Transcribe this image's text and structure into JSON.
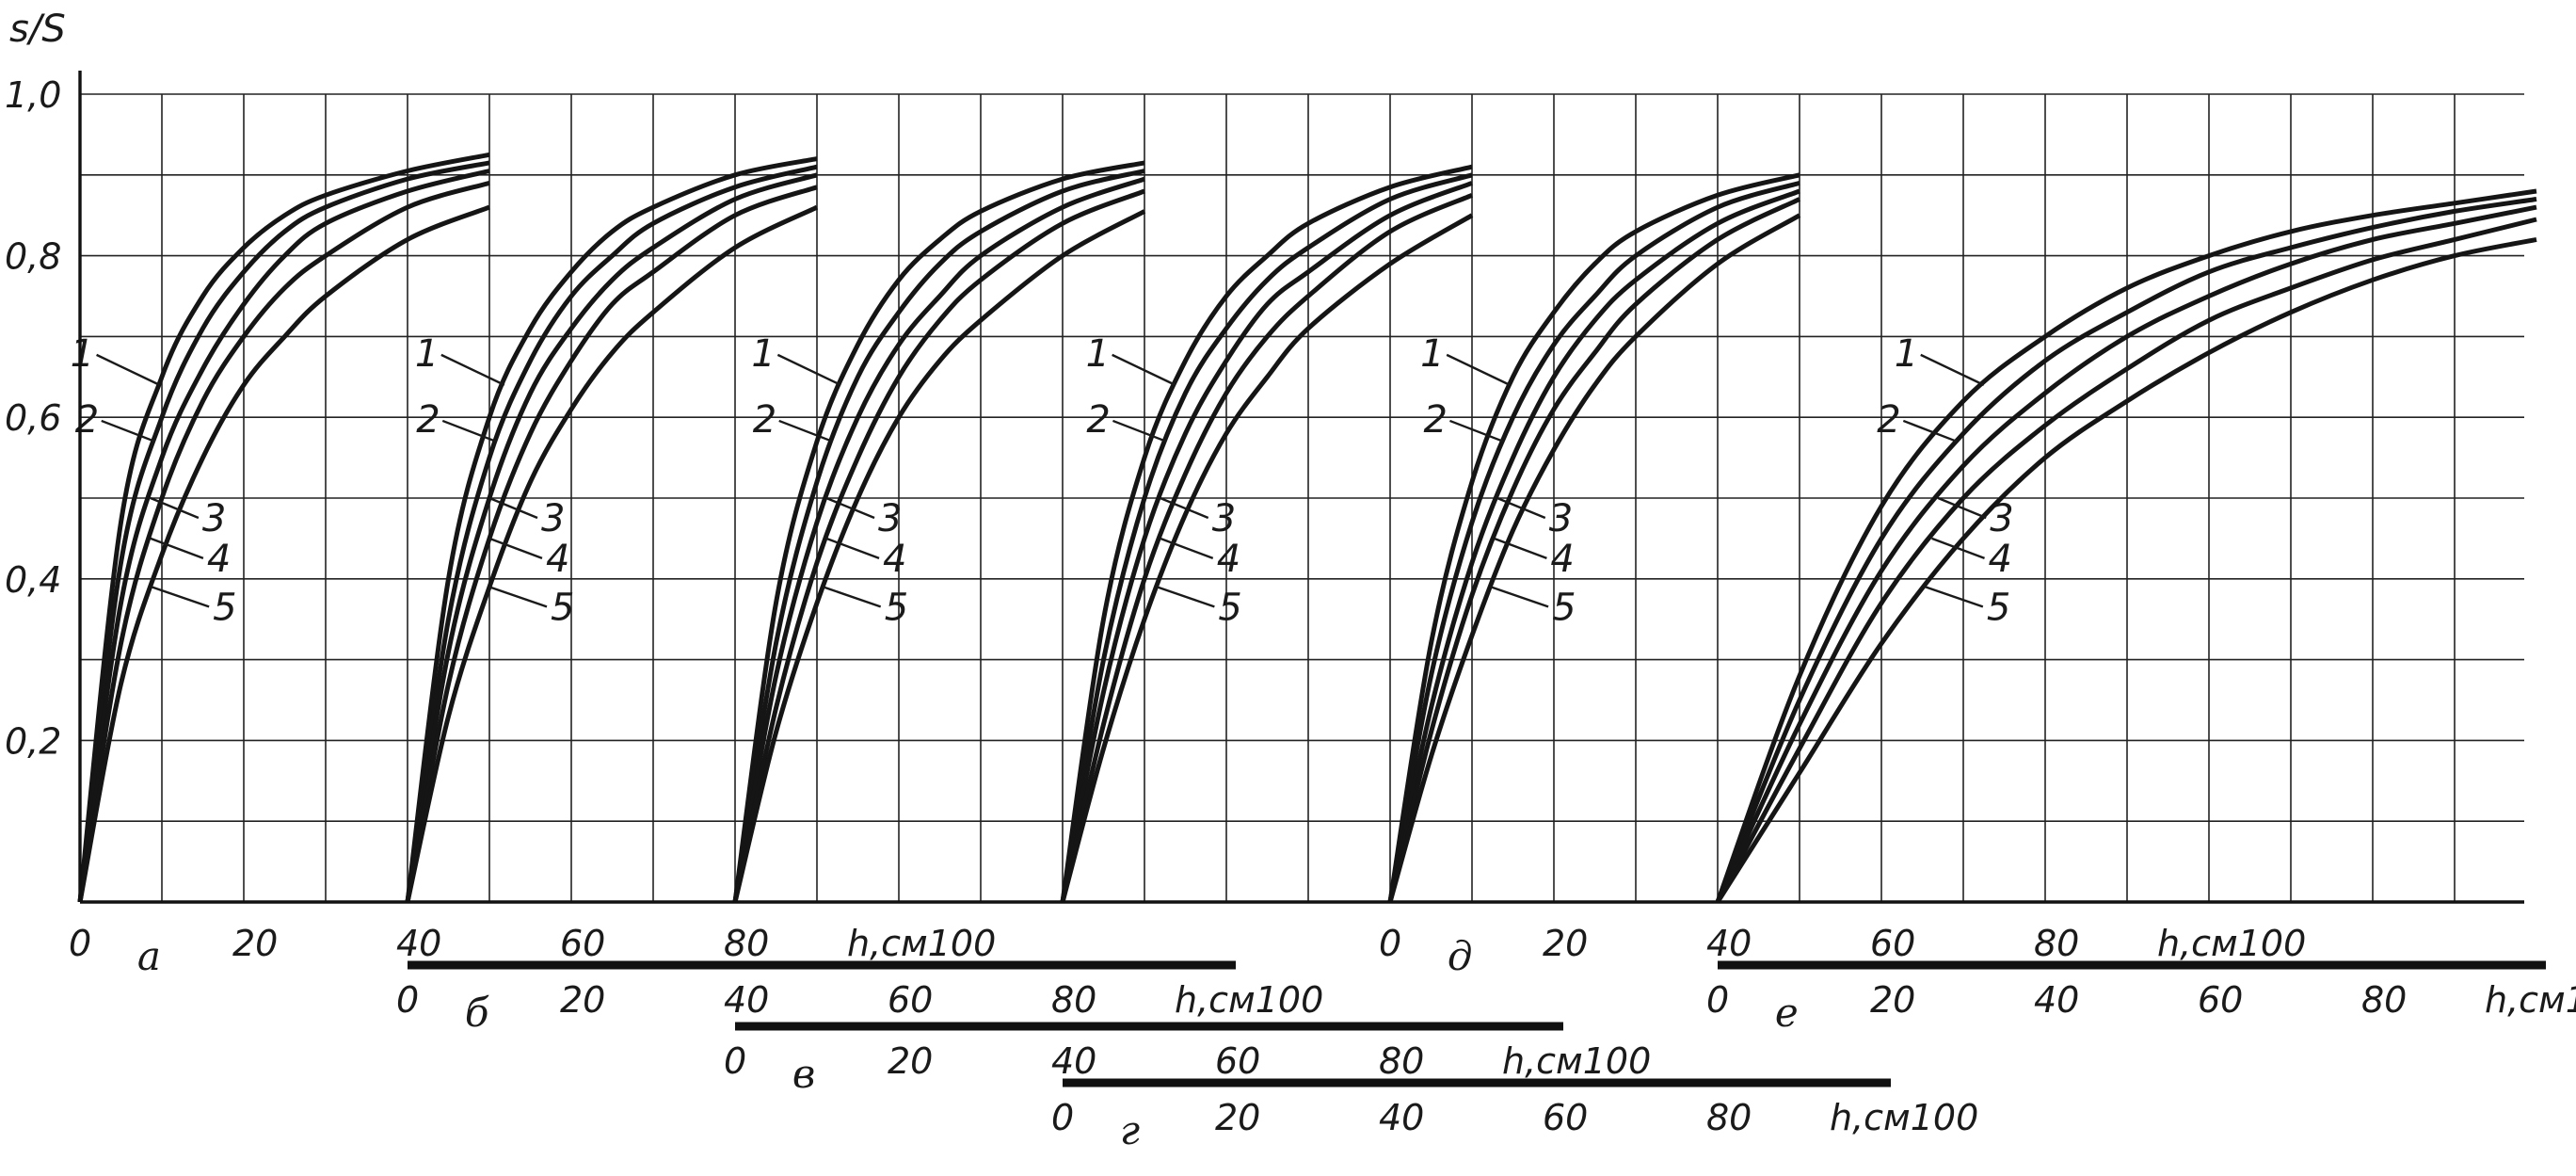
{
  "chart_data": {
    "type": "line",
    "title": "",
    "ylabel": "s/S",
    "ylim": [
      0,
      1.0
    ],
    "grid": true,
    "y_ticks": [
      "0,2",
      "0,4",
      "0,6",
      "0,8",
      "1,0"
    ],
    "x_ticks": [
      "0",
      "20",
      "40",
      "60",
      "80",
      "h,см100"
    ],
    "xlim": [
      0,
      100
    ],
    "panels": [
      {
        "letter": "а",
        "offset_cm": 0,
        "series": [
          {
            "name": "1",
            "x": [
              0,
              5,
              10,
              15,
              20,
              25,
              30,
              40,
              50
            ],
            "y": [
              0,
              0.47,
              0.65,
              0.75,
              0.81,
              0.85,
              0.875,
              0.905,
              0.925
            ]
          },
          {
            "name": "2",
            "x": [
              0,
              5,
              10,
              15,
              20,
              25,
              30,
              40,
              50
            ],
            "y": [
              0,
              0.42,
              0.6,
              0.71,
              0.78,
              0.83,
              0.86,
              0.895,
              0.915
            ]
          },
          {
            "name": "3",
            "x": [
              0,
              5,
              10,
              15,
              20,
              25,
              30,
              40,
              50
            ],
            "y": [
              0,
              0.37,
              0.55,
              0.66,
              0.74,
              0.8,
              0.84,
              0.88,
              0.905
            ]
          },
          {
            "name": "4",
            "x": [
              0,
              5,
              10,
              15,
              20,
              25,
              30,
              40,
              50
            ],
            "y": [
              0,
              0.32,
              0.5,
              0.62,
              0.7,
              0.76,
              0.8,
              0.86,
              0.89
            ]
          },
          {
            "name": "5",
            "x": [
              0,
              5,
              10,
              15,
              20,
              25,
              30,
              40,
              50
            ],
            "y": [
              0,
              0.27,
              0.43,
              0.55,
              0.64,
              0.7,
              0.75,
              0.82,
              0.86
            ]
          }
        ]
      },
      {
        "letter": "б",
        "offset_cm": 40,
        "series": [
          {
            "name": "1",
            "x": [
              0,
              5,
              10,
              15,
              20,
              25,
              30,
              40,
              50
            ],
            "y": [
              0,
              0.4,
              0.6,
              0.71,
              0.78,
              0.83,
              0.86,
              0.9,
              0.92
            ]
          },
          {
            "name": "2",
            "x": [
              0,
              5,
              10,
              15,
              20,
              25,
              30,
              40,
              50
            ],
            "y": [
              0,
              0.35,
              0.55,
              0.67,
              0.75,
              0.8,
              0.84,
              0.885,
              0.91
            ]
          },
          {
            "name": "3",
            "x": [
              0,
              5,
              10,
              15,
              20,
              25,
              30,
              40,
              50
            ],
            "y": [
              0,
              0.31,
              0.5,
              0.63,
              0.71,
              0.77,
              0.81,
              0.87,
              0.9
            ]
          },
          {
            "name": "4",
            "x": [
              0,
              5,
              10,
              15,
              20,
              25,
              30,
              40,
              50
            ],
            "y": [
              0,
              0.27,
              0.45,
              0.58,
              0.67,
              0.74,
              0.78,
              0.85,
              0.885
            ]
          },
          {
            "name": "5",
            "x": [
              0,
              5,
              10,
              15,
              20,
              25,
              30,
              40,
              50
            ],
            "y": [
              0,
              0.23,
              0.39,
              0.52,
              0.61,
              0.68,
              0.73,
              0.81,
              0.86
            ]
          }
        ]
      },
      {
        "letter": "в",
        "offset_cm": 80,
        "series": [
          {
            "name": "1",
            "x": [
              0,
              5,
              10,
              15,
              20,
              25,
              30,
              40,
              50
            ],
            "y": [
              0,
              0.37,
              0.57,
              0.69,
              0.77,
              0.82,
              0.855,
              0.895,
              0.915
            ]
          },
          {
            "name": "2",
            "x": [
              0,
              5,
              10,
              15,
              20,
              25,
              30,
              40,
              50
            ],
            "y": [
              0,
              0.32,
              0.52,
              0.65,
              0.73,
              0.79,
              0.83,
              0.88,
              0.905
            ]
          },
          {
            "name": "3",
            "x": [
              0,
              5,
              10,
              15,
              20,
              25,
              30,
              40,
              50
            ],
            "y": [
              0,
              0.28,
              0.47,
              0.6,
              0.69,
              0.75,
              0.8,
              0.86,
              0.895
            ]
          },
          {
            "name": "4",
            "x": [
              0,
              5,
              10,
              15,
              20,
              25,
              30,
              40,
              50
            ],
            "y": [
              0,
              0.24,
              0.42,
              0.55,
              0.65,
              0.72,
              0.77,
              0.84,
              0.88
            ]
          },
          {
            "name": "5",
            "x": [
              0,
              5,
              10,
              15,
              20,
              25,
              30,
              40,
              50
            ],
            "y": [
              0,
              0.21,
              0.37,
              0.5,
              0.6,
              0.67,
              0.72,
              0.8,
              0.855
            ]
          }
        ]
      },
      {
        "letter": "г",
        "offset_cm": 120,
        "series": [
          {
            "name": "1",
            "x": [
              0,
              5,
              10,
              15,
              20,
              25,
              30,
              40,
              50
            ],
            "y": [
              0,
              0.35,
              0.55,
              0.67,
              0.75,
              0.8,
              0.84,
              0.885,
              0.91
            ]
          },
          {
            "name": "2",
            "x": [
              0,
              5,
              10,
              15,
              20,
              25,
              30,
              40,
              50
            ],
            "y": [
              0,
              0.3,
              0.5,
              0.63,
              0.71,
              0.77,
              0.81,
              0.87,
              0.9
            ]
          },
          {
            "name": "3",
            "x": [
              0,
              5,
              10,
              15,
              20,
              25,
              30,
              40,
              50
            ],
            "y": [
              0,
              0.26,
              0.45,
              0.58,
              0.67,
              0.74,
              0.78,
              0.85,
              0.89
            ]
          },
          {
            "name": "4",
            "x": [
              0,
              5,
              10,
              15,
              20,
              25,
              30,
              40,
              50
            ],
            "y": [
              0,
              0.22,
              0.4,
              0.53,
              0.63,
              0.7,
              0.75,
              0.83,
              0.875
            ]
          },
          {
            "name": "5",
            "x": [
              0,
              5,
              10,
              15,
              20,
              25,
              30,
              40,
              50
            ],
            "y": [
              0,
              0.19,
              0.35,
              0.48,
              0.58,
              0.65,
              0.71,
              0.79,
              0.85
            ]
          }
        ]
      },
      {
        "letter": "д",
        "offset_cm": 160,
        "series": [
          {
            "name": "1",
            "x": [
              0,
              5,
              10,
              15,
              20,
              25,
              30,
              40,
              50
            ],
            "y": [
              0,
              0.32,
              0.52,
              0.65,
              0.73,
              0.79,
              0.83,
              0.875,
              0.9
            ]
          },
          {
            "name": "2",
            "x": [
              0,
              5,
              10,
              15,
              20,
              25,
              30,
              40,
              50
            ],
            "y": [
              0,
              0.28,
              0.47,
              0.6,
              0.69,
              0.75,
              0.8,
              0.86,
              0.89
            ]
          },
          {
            "name": "3",
            "x": [
              0,
              5,
              10,
              15,
              20,
              25,
              30,
              40,
              50
            ],
            "y": [
              0,
              0.24,
              0.42,
              0.55,
              0.65,
              0.72,
              0.77,
              0.84,
              0.88
            ]
          },
          {
            "name": "4",
            "x": [
              0,
              5,
              10,
              15,
              20,
              25,
              30,
              40,
              50
            ],
            "y": [
              0,
              0.21,
              0.38,
              0.51,
              0.61,
              0.68,
              0.74,
              0.82,
              0.87
            ]
          },
          {
            "name": "5",
            "x": [
              0,
              5,
              10,
              15,
              20,
              25,
              30,
              40,
              50
            ],
            "y": [
              0,
              0.18,
              0.33,
              0.46,
              0.56,
              0.64,
              0.7,
              0.79,
              0.85
            ]
          }
        ]
      },
      {
        "letter": "е",
        "offset_cm": 200,
        "series": [
          {
            "name": "1",
            "x": [
              0,
              10,
              20,
              30,
              40,
              50,
              60,
              70,
              80,
              90,
              100
            ],
            "y": [
              0,
              0.28,
              0.49,
              0.62,
              0.7,
              0.76,
              0.8,
              0.83,
              0.85,
              0.865,
              0.88
            ]
          },
          {
            "name": "2",
            "x": [
              0,
              10,
              20,
              30,
              40,
              50,
              60,
              70,
              80,
              90,
              100
            ],
            "y": [
              0,
              0.25,
              0.45,
              0.58,
              0.67,
              0.73,
              0.78,
              0.81,
              0.835,
              0.855,
              0.87
            ]
          },
          {
            "name": "3",
            "x": [
              0,
              10,
              20,
              30,
              40,
              50,
              60,
              70,
              80,
              90,
              100
            ],
            "y": [
              0,
              0.22,
              0.41,
              0.54,
              0.63,
              0.7,
              0.75,
              0.79,
              0.82,
              0.84,
              0.86
            ]
          },
          {
            "name": "4",
            "x": [
              0,
              10,
              20,
              30,
              40,
              50,
              60,
              70,
              80,
              90,
              100
            ],
            "y": [
              0,
              0.19,
              0.37,
              0.5,
              0.59,
              0.66,
              0.72,
              0.76,
              0.795,
              0.82,
              0.845
            ]
          },
          {
            "name": "5",
            "x": [
              0,
              10,
              20,
              30,
              40,
              50,
              60,
              70,
              80,
              90,
              100
            ],
            "y": [
              0,
              0.16,
              0.32,
              0.45,
              0.55,
              0.62,
              0.68,
              0.73,
              0.77,
              0.8,
              0.82
            ]
          }
        ]
      }
    ]
  }
}
